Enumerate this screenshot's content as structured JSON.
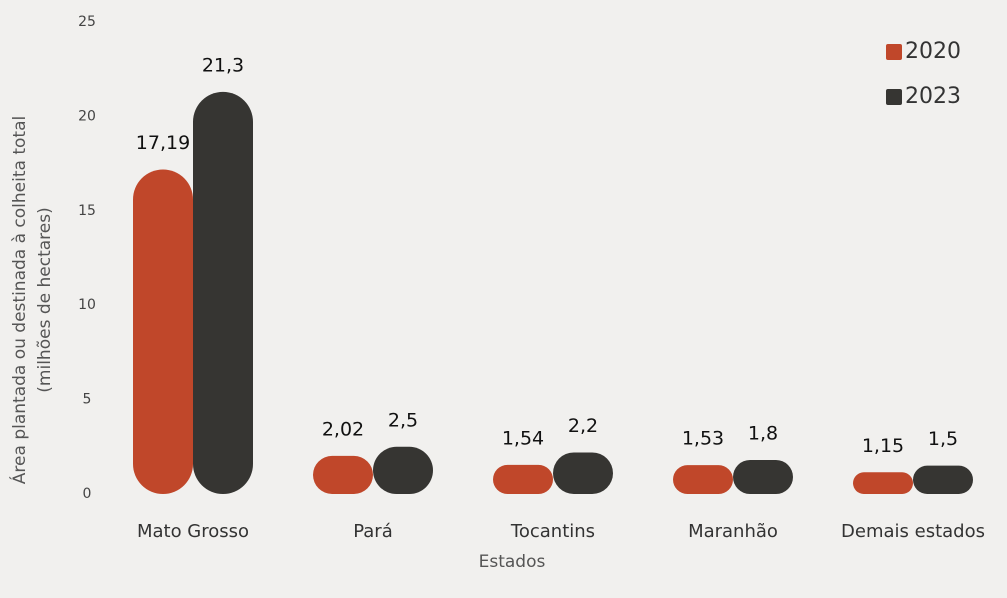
{
  "chart_data": {
    "type": "bar",
    "y_axis_label": [
      "Área plantada ou destinada à colheita total",
      "(milhões de hectares)"
    ],
    "x_axis_label": "Estados",
    "categories": [
      "Mato Grosso",
      "Pará",
      "Tocantins",
      "Maranhão",
      "Demais estados"
    ],
    "series": [
      {
        "name": "2020",
        "color": "#c0472a",
        "values": [
          17.19,
          2.02,
          1.54,
          1.53,
          1.15
        ],
        "value_labels": [
          "17,19",
          "2,02",
          "1,54",
          "1,53",
          "1,15"
        ]
      },
      {
        "name": "2023",
        "color": "#363532",
        "values": [
          21.3,
          2.5,
          2.2,
          1.8,
          1.5
        ],
        "value_labels": [
          "21,3",
          "2,5",
          "2,2",
          "1,8",
          "1,5"
        ]
      }
    ],
    "ylim": [
      0,
      25
    ],
    "yticks": [
      0,
      5,
      10,
      15,
      20,
      25
    ],
    "grid": false,
    "legend": "top-right"
  }
}
